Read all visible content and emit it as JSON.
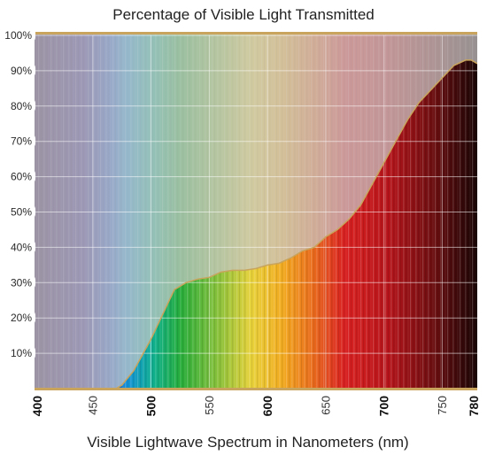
{
  "chart_data": {
    "type": "area",
    "title": "Percentage of Visible Light Transmitted",
    "xlabel": "Visible Lightwave Spectrum in Nanometers (nm)",
    "ylabel": "",
    "xlim": [
      400,
      780
    ],
    "ylim": [
      0,
      100
    ],
    "grid": true,
    "x_ticks": [
      400,
      450,
      500,
      550,
      600,
      650,
      700,
      750,
      780
    ],
    "x_tick_labels": [
      "400",
      "450",
      "500",
      "550",
      "600",
      "650",
      "700",
      "750",
      "780"
    ],
    "x_major_ticks": [
      400,
      500,
      600,
      700,
      780
    ],
    "y_ticks": [
      10,
      20,
      30,
      40,
      50,
      60,
      70,
      80,
      90,
      100
    ],
    "y_tick_labels": [
      "10%",
      "20%",
      "30%",
      "40%",
      "50%",
      "60%",
      "70%",
      "80%",
      "90%",
      "100%"
    ],
    "series": [
      {
        "x": [
          400,
          420,
          440,
          460,
          470,
          475,
          480,
          485,
          490,
          500,
          510,
          520,
          530,
          540,
          550,
          560,
          570,
          580,
          590,
          600,
          610,
          620,
          630,
          640,
          650,
          660,
          670,
          680,
          690,
          700,
          710,
          720,
          730,
          740,
          750,
          760,
          770,
          775,
          780
        ],
        "values": [
          0,
          0,
          0,
          0,
          0,
          1,
          3,
          5,
          8,
          14,
          21,
          28,
          30,
          31,
          31.5,
          33,
          33.5,
          33.5,
          34,
          35,
          35.5,
          37,
          39,
          40,
          43,
          45,
          48,
          52,
          58,
          64,
          70,
          76,
          81,
          84.5,
          88,
          91.5,
          93,
          93,
          92
        ]
      }
    ],
    "colors": {
      "frame": "#c8a45c",
      "grid": "#ffffff",
      "outline": "#c8a45c",
      "fog": "#bdbdbd"
    }
  }
}
